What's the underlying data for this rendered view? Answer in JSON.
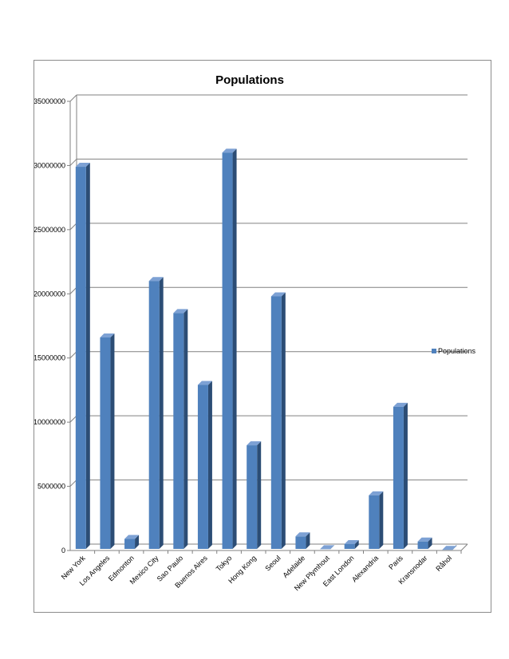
{
  "chart_data": {
    "type": "bar",
    "title": "Populations",
    "xlabel": "",
    "ylabel": "",
    "categories": [
      "New York",
      "Los Angeles",
      "Edmonton",
      "Mexico City",
      "Sao Paulo",
      "Buenos Aires",
      "Tokyo",
      "Hong Kong",
      "Seoul",
      "Adelaide",
      "New Plymhout",
      "East London",
      "Alexandria",
      "Paris",
      "Kransnodar",
      "Råhol"
    ],
    "series": [
      {
        "name": "Populations",
        "values": [
          29900000,
          16600000,
          900000,
          21000000,
          18500000,
          12900000,
          31000000,
          8200000,
          19800000,
          1100000,
          100000,
          500000,
          4300000,
          11200000,
          700000,
          50000
        ]
      }
    ],
    "ylim": [
      0,
      35000000
    ],
    "yticks": [
      "0",
      "5000000",
      "10000000",
      "15000000",
      "20000000",
      "25000000",
      "30000000",
      "35000000"
    ],
    "grid": true,
    "legend": "right",
    "colors": {
      "bar_front": "#4f81bd",
      "bar_side": "#2c4d75",
      "bar_top": "#7da1d4",
      "grid": "#808080"
    }
  }
}
